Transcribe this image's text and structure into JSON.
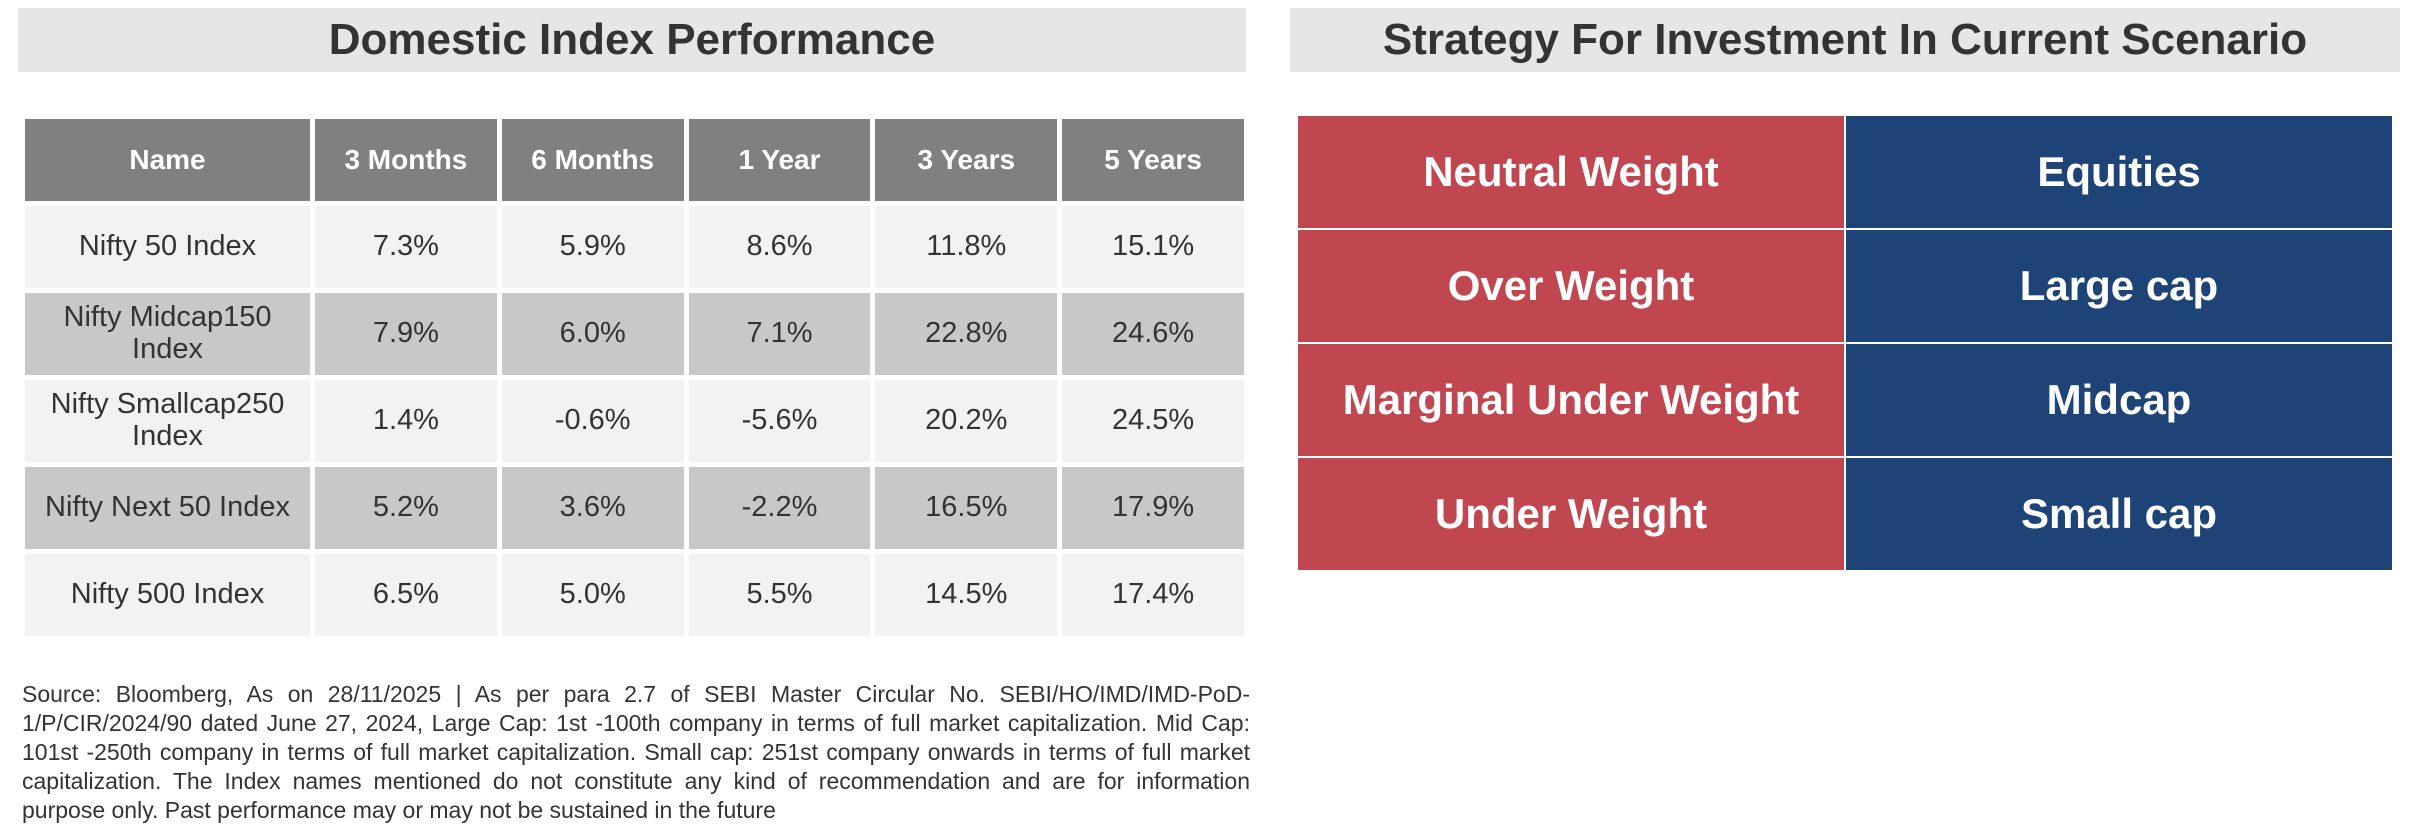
{
  "left": {
    "title": "Domestic Index Performance",
    "header": [
      "Name",
      "3 Months",
      "6 Months",
      "1 Year",
      "3 Years",
      "5 Years"
    ],
    "rows": [
      [
        "Nifty 50 Index",
        "7.3%",
        "5.9%",
        "8.6%",
        "11.8%",
        "15.1%"
      ],
      [
        "Nifty Midcap150 Index",
        "7.9%",
        "6.0%",
        "7.1%",
        "22.8%",
        "24.6%"
      ],
      [
        "Nifty Smallcap250 Index",
        "1.4%",
        "-0.6%",
        "-5.6%",
        "20.2%",
        "24.5%"
      ],
      [
        "Nifty Next 50 Index",
        "5.2%",
        "3.6%",
        "-2.2%",
        "16.5%",
        "17.9%"
      ],
      [
        "Nifty 500 Index",
        "6.5%",
        "5.0%",
        "5.5%",
        "14.5%",
        "17.4%"
      ]
    ],
    "note": "Source: Bloomberg, As on 28/11/2025 | As per para 2.7 of SEBI Master Circular No. SEBI/HO/IMD/IMD-PoD-1/P/CIR/2024/90 dated June 27, 2024, Large Cap: 1st -100th company in terms of full market capitalization. Mid Cap: 101st -250th company in terms of full market capitalization. Small cap: 251st company onwards in terms of full market capitalization. The Index names mentioned do not constitute any kind of recommendation and are for information purpose only. Past performance may or may not be sustained in the future"
  },
  "right": {
    "title": "Strategy For Investment In Current Scenario",
    "rows": [
      [
        "Neutral Weight",
        "Equities"
      ],
      [
        "Over Weight",
        "Large cap"
      ],
      [
        "Marginal Under Weight",
        "Midcap"
      ],
      [
        "Under Weight",
        "Small cap"
      ]
    ]
  }
}
